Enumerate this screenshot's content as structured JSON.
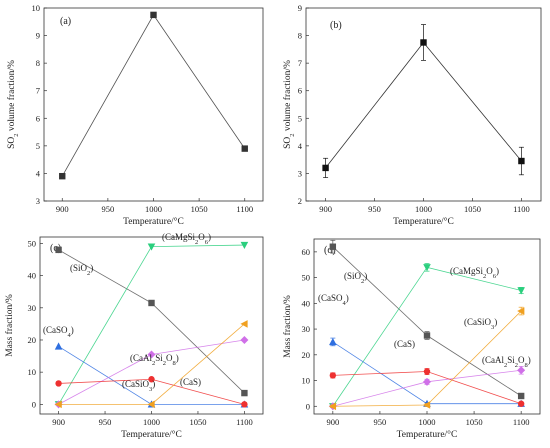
{
  "panels": [
    {
      "label": "(a)",
      "xlabel": "Temperature/°C",
      "ylabel": {
        "main": "SO",
        "sub": "2",
        "rest": " volume fraction/%"
      },
      "chart_data": {
        "type": "line",
        "x": [
          900,
          1000,
          1100
        ],
        "xlim": [
          880,
          1120
        ],
        "ylim": [
          3,
          10
        ],
        "xticks": [
          900,
          950,
          1000,
          1050,
          1100
        ],
        "yticks": [
          3,
          4,
          5,
          6,
          7,
          8,
          9,
          10
        ],
        "grid": false,
        "series": [
          {
            "values": [
              3.9,
              9.75,
              4.9
            ],
            "marker": "square",
            "color": "#333333"
          }
        ]
      }
    },
    {
      "label": "(b)",
      "xlabel": "Temperature/°C",
      "ylabel": {
        "main": "SO",
        "sub": "2",
        "rest": " volume fraction/%"
      },
      "chart_data": {
        "type": "line",
        "x": [
          900,
          1000,
          1100
        ],
        "xlim": [
          880,
          1120
        ],
        "ylim": [
          2,
          9
        ],
        "xticks": [
          900,
          950,
          1000,
          1050,
          1100
        ],
        "yticks": [
          2,
          3,
          4,
          5,
          6,
          7,
          8,
          9
        ],
        "grid": false,
        "series": [
          {
            "values": [
              3.2,
              7.75,
              3.45
            ],
            "errors": [
              0.35,
              0.65,
              0.5
            ],
            "marker": "square",
            "color": "#111111"
          }
        ]
      }
    },
    {
      "label": "(c)",
      "xlabel": "Temperature/°C",
      "ylabel": {
        "main": "Mass fraction/%",
        "sub": "",
        "rest": ""
      },
      "chart_data": {
        "type": "line",
        "x": [
          900,
          1000,
          1100
        ],
        "xlim": [
          880,
          1120
        ],
        "ylim": [
          -3,
          52
        ],
        "xticks": [
          900,
          950,
          1000,
          1050,
          1100
        ],
        "yticks": [
          0,
          10,
          20,
          30,
          40,
          50
        ],
        "grid": false,
        "series": [
          {
            "values": [
              48,
              31.5,
              3.5
            ],
            "marker": "square",
            "color": "#555555"
          },
          {
            "values": [
              0,
              49,
              49.5
            ],
            "marker": "tri-down",
            "color": "#2bcf7e"
          },
          {
            "values": [
              18,
              0,
              0
            ],
            "marker": "tri-up",
            "color": "#2f6fe0"
          },
          {
            "values": [
              0,
              15.5,
              20
            ],
            "marker": "diamond",
            "color": "#d070e8"
          },
          {
            "values": [
              6.5,
              7.8,
              0
            ],
            "marker": "circle",
            "color": "#ee3030"
          },
          {
            "values": [
              0,
              0,
              25
            ],
            "marker": "tri-left",
            "color": "#f0a020"
          }
        ]
      },
      "annotations": [
        {
          "text": "(SiO",
          "sub": "2",
          "rest": ")"
        },
        {
          "text": "(CaMgSi",
          "sub": "2",
          "rest": "O",
          "sub2": "6",
          "rest2": ")"
        },
        {
          "text": "(CaSO",
          "sub": "4",
          "rest": ")"
        },
        {
          "text": "(CaAl",
          "sub": "2",
          "rest": "Si",
          "sub2": "2",
          "rest2": "O",
          "sub3": "8",
          "rest3": ")"
        },
        {
          "text": "(CaSiO",
          "sub": "3",
          "rest": ")"
        },
        {
          "text": "(CaS)",
          "sub": "",
          "rest": ""
        }
      ]
    },
    {
      "label": "(d)",
      "xlabel": "Temperature/°C",
      "ylabel": {
        "main": "Mass fraction/%",
        "sub": "",
        "rest": ""
      },
      "chart_data": {
        "type": "line",
        "x": [
          900,
          1000,
          1100
        ],
        "xlim": [
          880,
          1120
        ],
        "ylim": [
          -3,
          65
        ],
        "xticks": [
          900,
          950,
          1000,
          1050,
          1100
        ],
        "yticks": [
          0,
          10,
          20,
          30,
          40,
          50,
          60
        ],
        "grid": false,
        "series": [
          {
            "values": [
              62,
              27.5,
              4
            ],
            "errors": [
              2.5,
              1.5,
              1.0
            ],
            "marker": "square",
            "color": "#555555"
          },
          {
            "values": [
              0,
              54,
              45
            ],
            "errors": [
              0.5,
              1.5,
              1.2
            ],
            "marker": "tri-down",
            "color": "#2bcf7e"
          },
          {
            "values": [
              25,
              1,
              1
            ],
            "errors": [
              1.5,
              0.5,
              0.5
            ],
            "marker": "tri-up",
            "color": "#2f6fe0"
          },
          {
            "values": [
              0,
              9.5,
              14
            ],
            "errors": [
              0.5,
              1.0,
              1.5
            ],
            "marker": "diamond",
            "color": "#d070e8"
          },
          {
            "values": [
              12,
              13.5,
              1
            ],
            "errors": [
              1.0,
              1.2,
              0.5
            ],
            "marker": "circle",
            "color": "#ee3030"
          },
          {
            "values": [
              0,
              0.5,
              37
            ],
            "errors": [
              0.5,
              0.5,
              1.5
            ],
            "marker": "tri-left",
            "color": "#f0a020"
          }
        ]
      },
      "annotations": [
        {
          "text": "(SiO",
          "sub": "2",
          "rest": ")"
        },
        {
          "text": "(CaMgSi",
          "sub": "2",
          "rest": "O",
          "sub2": "6",
          "rest2": ")"
        },
        {
          "text": "(CaSiO",
          "sub": "3",
          "rest": ")"
        },
        {
          "text": "(CaSO",
          "sub": "4",
          "rest": ")"
        },
        {
          "text": "(CaS)",
          "sub": "",
          "rest": ""
        },
        {
          "text": "(CaAl",
          "sub": "2",
          "rest": "Si",
          "sub2": "2",
          "rest2": "O",
          "sub3": "8",
          "rest3": ")"
        }
      ]
    }
  ]
}
